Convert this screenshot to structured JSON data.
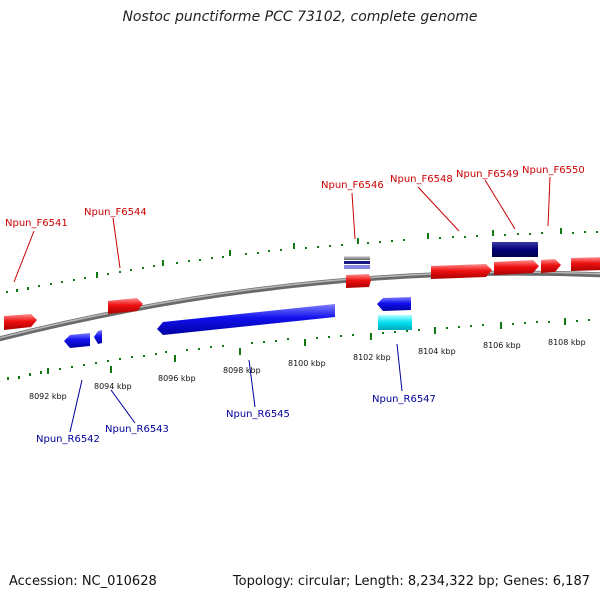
{
  "title": "Nostoc punctiforme PCC 73102, complete genome",
  "footer": {
    "accession": "Accession: NC_010628",
    "summary": "Topology: circular; Length: 8,234,322 bp; Genes: 6,187"
  },
  "colors": {
    "forward_label": "#cc0000",
    "reverse_label": "#000099",
    "forward_gene": "#ee1111",
    "reverse_gene": "#1111ee",
    "dark_gene": "#000077",
    "cyan_gene": "#00e0f0",
    "tick": "#117711",
    "backbone": "#888888"
  },
  "ruler": {
    "tick_labels": [
      "8092 kbp",
      "8094 kbp",
      "8096 kbp",
      "8098 kbp",
      "8100 kbp",
      "8102 kbp",
      "8104 kbp",
      "8106 kbp",
      "8108 kbp"
    ]
  },
  "genes": {
    "forward_labels": [
      "Npun_F6541",
      "Npun_F6544",
      "Npun_F6546",
      "Npun_F6548",
      "Npun_F6549",
      "Npun_F6550"
    ],
    "reverse_labels": [
      "Npun_R6542",
      "Npun_R6543",
      "Npun_R6545",
      "Npun_R6547"
    ]
  }
}
